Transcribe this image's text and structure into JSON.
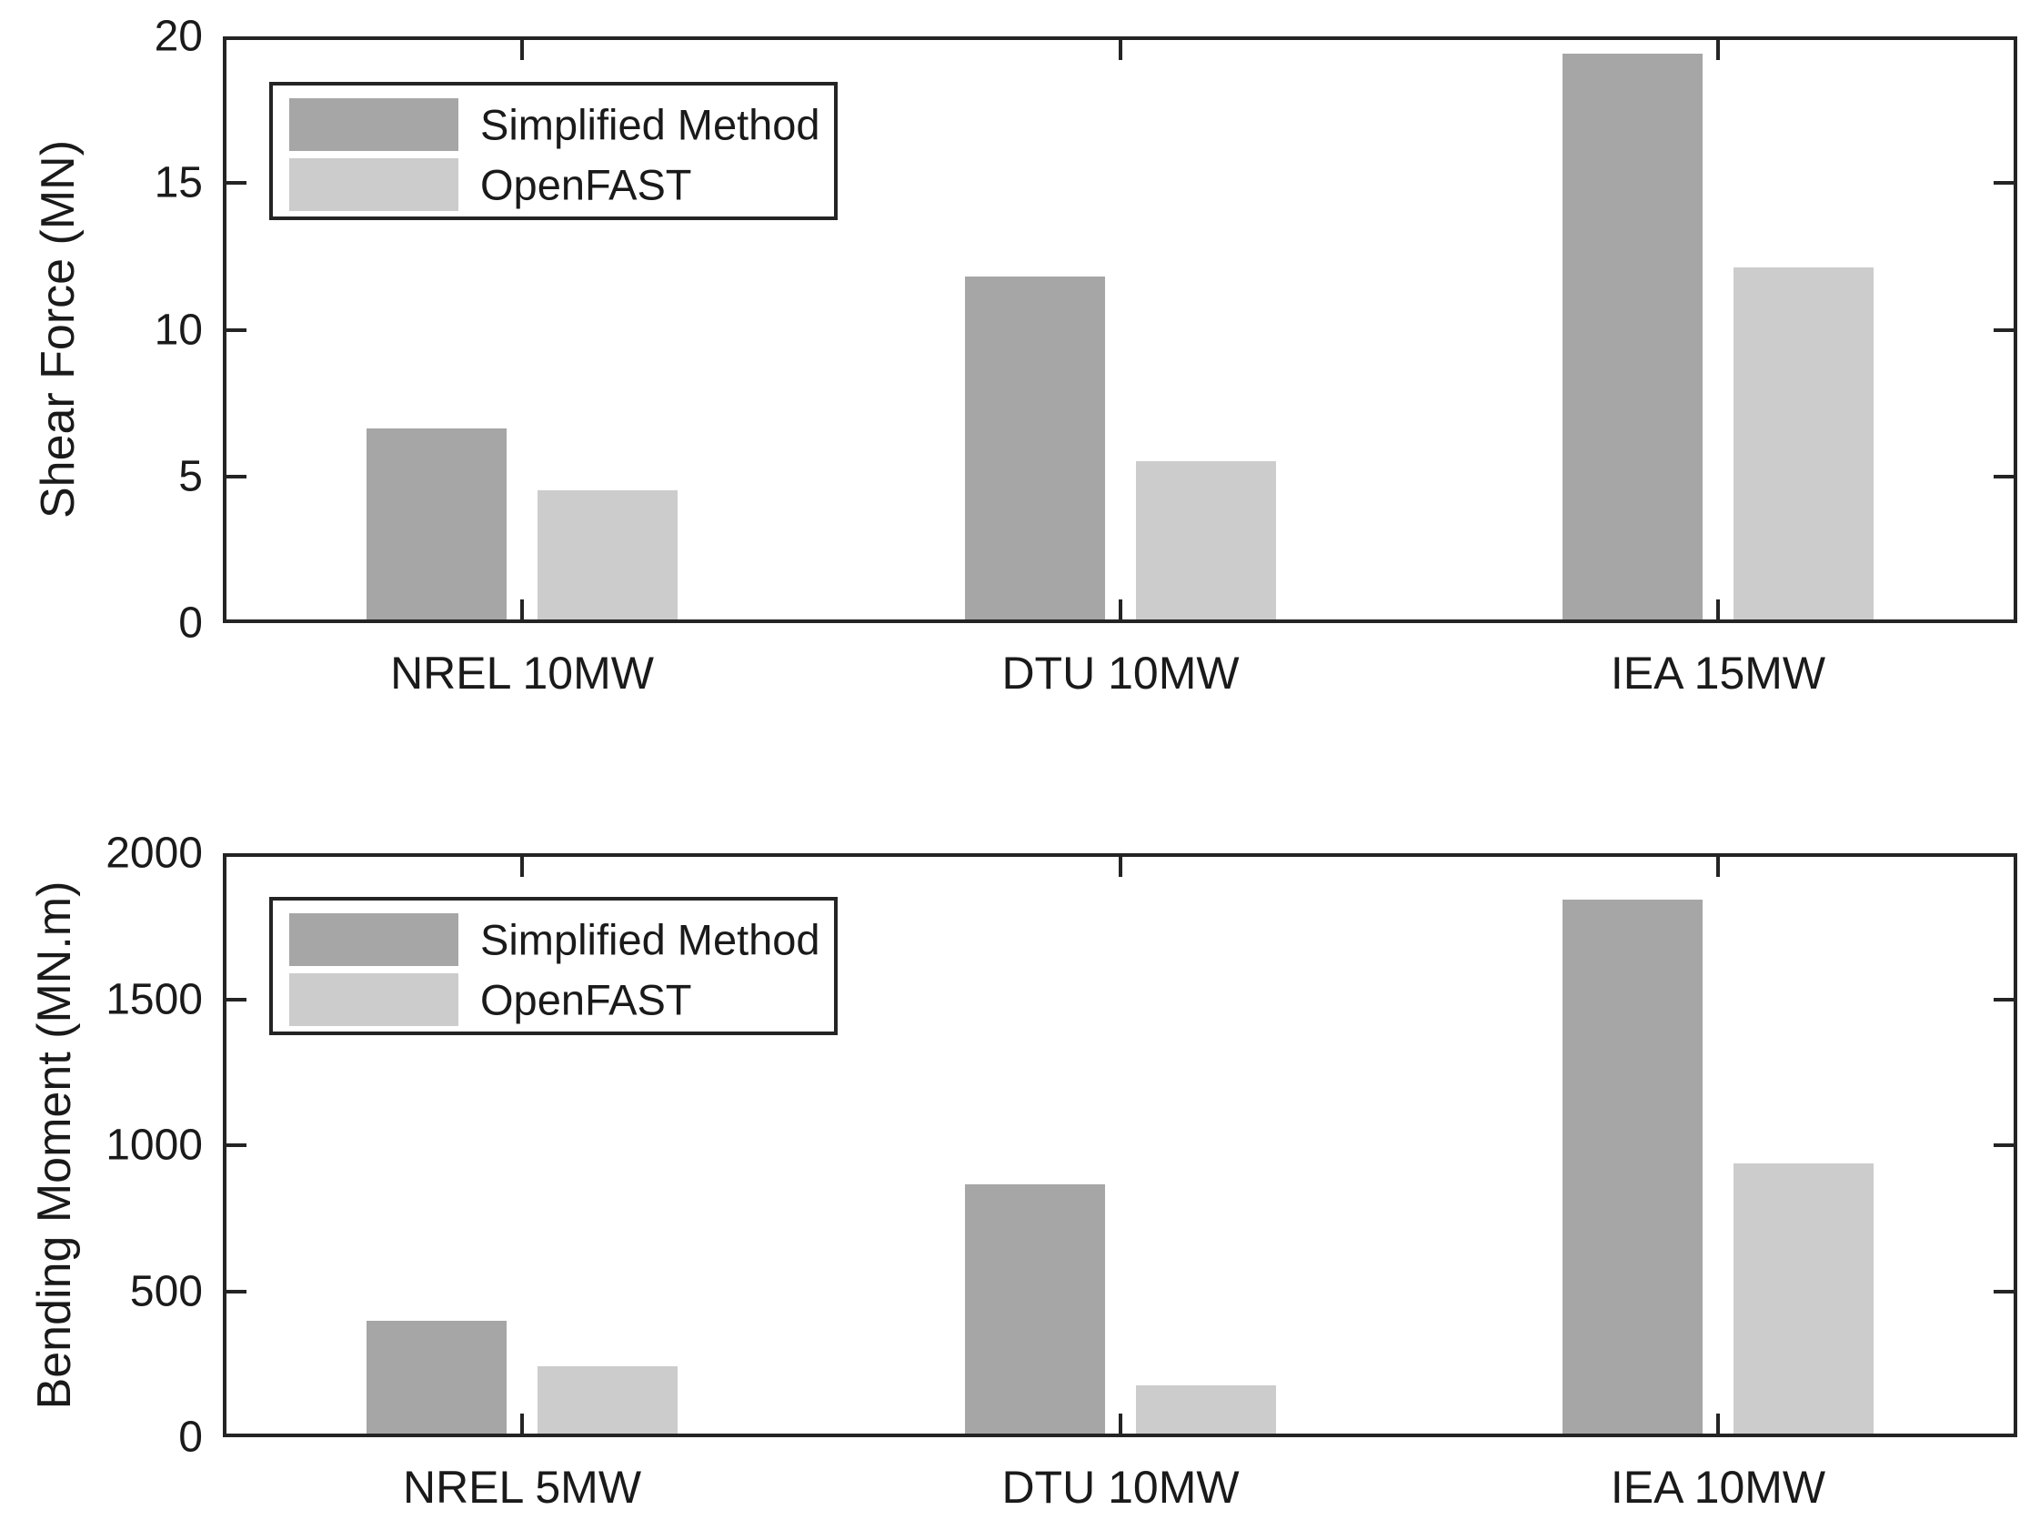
{
  "chart_data": [
    {
      "type": "bar",
      "title": "",
      "xlabel": "",
      "ylabel": "Shear Force (MN)",
      "categories": [
        "NREL 10MW",
        "DTU 10MW",
        "IEA 15MW"
      ],
      "series": [
        {
          "name": "Simplified Method",
          "color": "#a6a6a6",
          "values": [
            6.5,
            11.7,
            19.3
          ]
        },
        {
          "name": "OpenFAST",
          "color": "#cccccc",
          "values": [
            4.4,
            5.4,
            12.0
          ]
        }
      ],
      "ylim": [
        0,
        20
      ],
      "yticks": [
        "0",
        "5",
        "10",
        "15",
        "20"
      ],
      "ytick_values": [
        0,
        5,
        10,
        15,
        20
      ],
      "grid": false,
      "legend_position": "upper-left"
    },
    {
      "type": "bar",
      "title": "",
      "xlabel": "",
      "ylabel": "Bending Moment (MN.m)",
      "categories": [
        "NREL 5MW",
        "DTU 10MW",
        "IEA 10MW"
      ],
      "series": [
        {
          "name": "Simplified Method",
          "color": "#a6a6a6",
          "values": [
            385,
            855,
            1830
          ]
        },
        {
          "name": "OpenFAST",
          "color": "#cccccc",
          "values": [
            230,
            165,
            925
          ]
        }
      ],
      "ylim": [
        0,
        2000
      ],
      "yticks": [
        "0",
        "500",
        "1000",
        "1500",
        "2000"
      ],
      "ytick_values": [
        0,
        500,
        1000,
        1500,
        2000
      ],
      "grid": false,
      "legend_position": "upper-left"
    }
  ],
  "style": {
    "axis_color": "#242424",
    "text_color": "#1a1a1a",
    "background": "#ffffff",
    "bar_dark": "#a6a6a6",
    "bar_light": "#cccccc"
  }
}
